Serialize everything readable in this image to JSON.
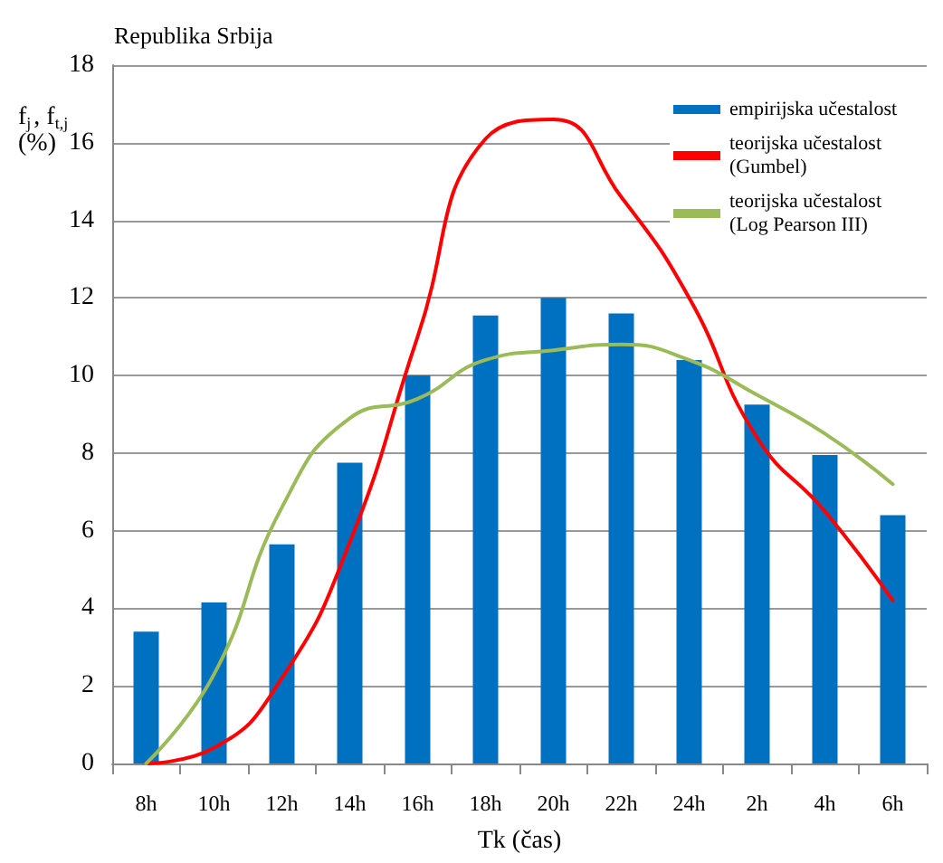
{
  "chart_data": {
    "type": "bar",
    "title": "Republika Srbija",
    "xlabel": "Tk (čas)",
    "ylabel": "f$_{j}$, f$_{t,j}$ (%)",
    "categories": [
      "8h",
      "10h",
      "12h",
      "14h",
      "16h",
      "18h",
      "20h",
      "22h",
      "24h",
      "2h",
      "4h",
      "6h"
    ],
    "series": [
      {
        "name": "empirijska učestalost",
        "color": "#0070c0",
        "values": [
          3.4,
          4.15,
          5.65,
          7.75,
          10.0,
          11.55,
          12.0,
          11.6,
          10.4,
          9.25,
          7.95,
          6.4
        ]
      },
      {
        "name": "teorijska učestalost (Gumbel)",
        "type": "line",
        "color": "#ff0000",
        "values": [
          0,
          0.4,
          2.2,
          5.7,
          11.0,
          16.1,
          16.6,
          14.6,
          12.0,
          8.4,
          6.5,
          4.2
        ]
      },
      {
        "name": "teorijska učestalost (Log Pearson III)",
        "type": "line",
        "color": "#9bbb59",
        "values": [
          0,
          2.3,
          6.6,
          8.9,
          9.4,
          10.4,
          10.65,
          10.8,
          10.4,
          9.5,
          8.5,
          7.2
        ]
      }
    ],
    "ylim": [
      0,
      18
    ],
    "yticks": [
      0,
      2,
      4,
      6,
      8,
      10,
      12,
      14,
      16,
      18
    ],
    "grid": "y",
    "legend": "right",
    "marker": "none",
    "line_style": "solid"
  }
}
